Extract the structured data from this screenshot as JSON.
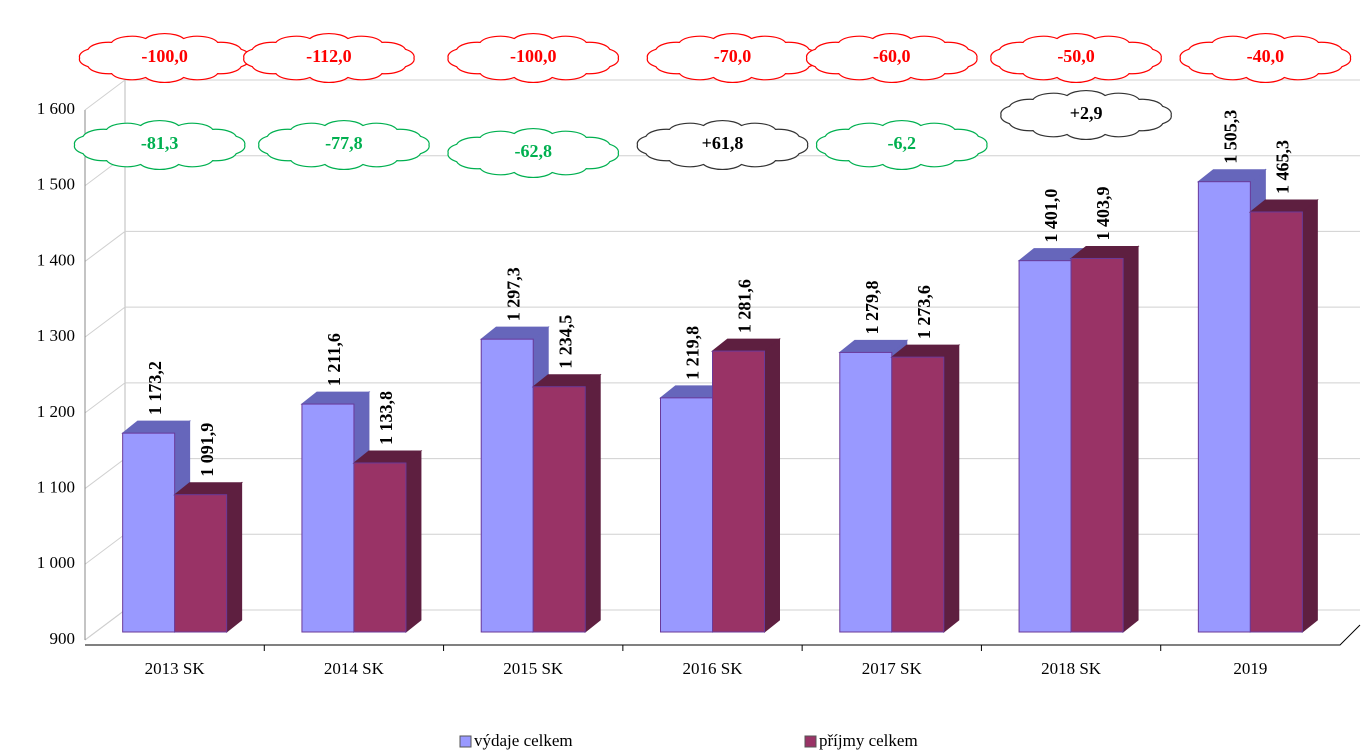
{
  "chart_data": {
    "type": "bar3d",
    "categories": [
      "2013 SK",
      "2014 SK",
      "2015 SK",
      "2016 SK",
      "2017 SK",
      "2018 SK",
      "2019"
    ],
    "series": [
      {
        "name": "výdaje celkem",
        "color": "#9999ff",
        "side": "#6666bb",
        "values": [
          1173.2,
          1211.6,
          1297.3,
          1219.8,
          1279.8,
          1401.0,
          1505.3
        ],
        "value_labels": [
          "1 173,2",
          "1 211,6",
          "1 297,3",
          "1 219,8",
          "1 279,8",
          "1 401,0",
          "1 505,3"
        ]
      },
      {
        "name": "příjmy celkem",
        "color": "#993366",
        "side": "#5e1f40",
        "values": [
          1091.9,
          1133.8,
          1234.5,
          1281.6,
          1273.6,
          1403.9,
          1465.3
        ],
        "value_labels": [
          "1 091,9",
          "1 133,8",
          "1 234,5",
          "1 281,6",
          "1 273,6",
          "1 403,9",
          "1 465,3"
        ]
      }
    ],
    "ylim": [
      900,
      1600
    ],
    "yticks": [
      {
        "value": 900,
        "label": "900"
      },
      {
        "value": 1000,
        "label": "1 000"
      },
      {
        "value": 1100,
        "label": "1 100"
      },
      {
        "value": 1200,
        "label": "1 200"
      },
      {
        "value": 1300,
        "label": "1 300"
      },
      {
        "value": 1400,
        "label": "1 400"
      },
      {
        "value": 1500,
        "label": "1 500"
      },
      {
        "value": 1600,
        "label": "1 600"
      }
    ],
    "grid": true,
    "legend": "bottom",
    "cloud_row_1": [
      {
        "text": "-100,0",
        "color": "#ff0000"
      },
      {
        "text": "-112,0",
        "color": "#ff0000"
      },
      {
        "text": "-100,0",
        "color": "#ff0000"
      },
      {
        "text": "-70,0",
        "color": "#ff0000"
      },
      {
        "text": "-60,0",
        "color": "#ff0000"
      },
      {
        "text": "-50,0",
        "color": "#ff0000"
      },
      {
        "text": "-40,0",
        "color": "#ff0000"
      }
    ],
    "cloud_row_2": [
      {
        "text": "-81,3",
        "color": "#00b050"
      },
      {
        "text": "-77,8",
        "color": "#00b050"
      },
      {
        "text": "-62,8",
        "color": "#00b050"
      },
      {
        "text": "+61,8",
        "color": "#000000"
      },
      {
        "text": "-6,2",
        "color": "#00b050"
      },
      {
        "text": "+2,9",
        "color": "#000000"
      }
    ]
  }
}
